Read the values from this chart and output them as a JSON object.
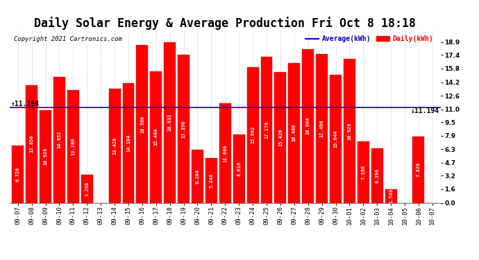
{
  "title": "Daily Solar Energy & Average Production Fri Oct 8 18:18",
  "copyright": "Copyright 2021 Cartronics.com",
  "legend_avg": "Average(kWh)",
  "legend_daily": "Daily(kWh)",
  "average_value": 11.194,
  "categories": [
    "09-07",
    "09-08",
    "09-09",
    "09-10",
    "09-11",
    "09-12",
    "09-13",
    "09-14",
    "09-15",
    "09-16",
    "09-17",
    "09-18",
    "09-19",
    "09-20",
    "09-21",
    "09-22",
    "09-23",
    "09-24",
    "09-25",
    "09-26",
    "09-27",
    "09-28",
    "09-29",
    "09-30",
    "10-01",
    "10-02",
    "10-03",
    "10-04",
    "10-05",
    "10-06",
    "10-07"
  ],
  "values": [
    6.72,
    13.856,
    10.928,
    14.852,
    13.28,
    3.268,
    0.0,
    13.428,
    14.104,
    18.56,
    15.484,
    18.932,
    17.396,
    6.204,
    5.248,
    11.68,
    8.016,
    15.992,
    17.176,
    15.42,
    16.468,
    18.084,
    17.496,
    15.044,
    16.928,
    7.196,
    6.396,
    1.588,
    0.0,
    7.828,
    0.0
  ],
  "bar_color": "#ff0000",
  "avg_line_color": "#0000cc",
  "bg_color": "#ffffff",
  "plot_bg_color": "#ffffff",
  "grid_color": "#cccccc",
  "yticks_right": [
    0.0,
    1.6,
    3.2,
    4.7,
    6.3,
    7.9,
    9.5,
    11.0,
    12.6,
    14.2,
    15.8,
    17.4,
    18.9
  ],
  "ylim": [
    0.0,
    20.2
  ],
  "title_fontsize": 12,
  "tick_fontsize": 6.5,
  "bar_label_fontsize": 5.0,
  "avg_fontsize": 7.0,
  "copyright_fontsize": 6.5
}
